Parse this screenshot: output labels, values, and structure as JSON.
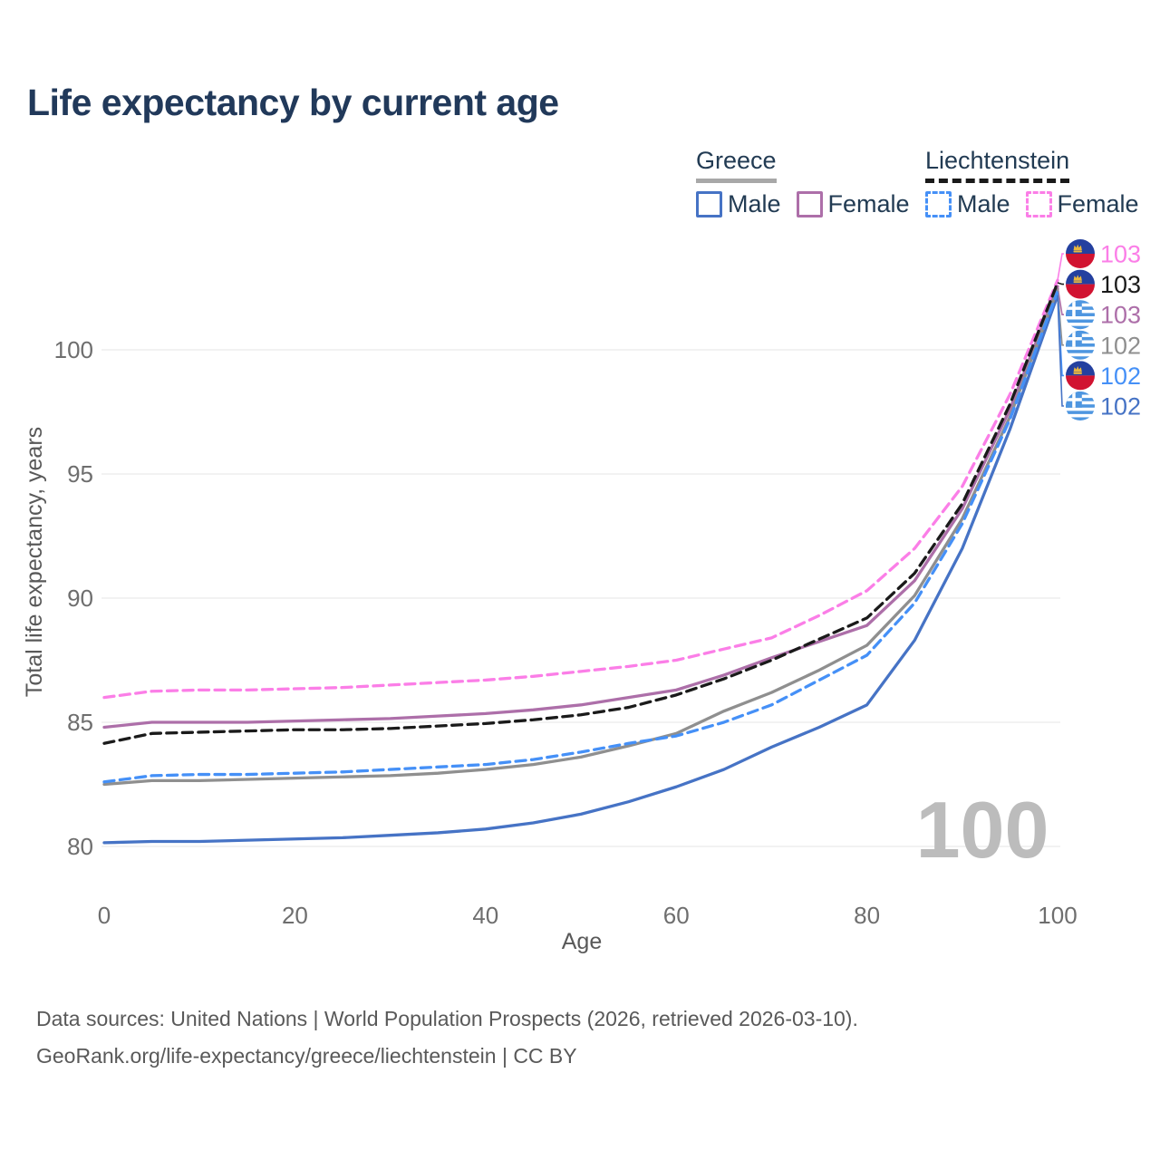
{
  "title": "Life expectancy by current age",
  "watermark": "100",
  "legend": {
    "groups": [
      {
        "label": "Greece",
        "line_style": "solid",
        "underline_color": "#a8a8a8",
        "items": [
          {
            "label": "Male",
            "color": "#4673c5",
            "dashed": false
          },
          {
            "label": "Female",
            "color": "#ad6fa9",
            "dashed": false
          }
        ]
      },
      {
        "label": "Liechtenstein",
        "line_style": "dashed",
        "underline_color": "#1a1a1a",
        "items": [
          {
            "label": "Male",
            "color": "#4590f7",
            "dashed": true
          },
          {
            "label": "Female",
            "color": "#fb7ee7",
            "dashed": true
          }
        ]
      }
    ]
  },
  "chart_data": {
    "type": "line",
    "title": "Life expectancy by current age",
    "xlabel": "Age",
    "ylabel": "Total life expectancy, years",
    "xticks": [
      0,
      20,
      40,
      60,
      80,
      100
    ],
    "yticks": [
      80,
      85,
      90,
      95,
      100
    ],
    "xlim": [
      0,
      100
    ],
    "ylim": [
      78.5,
      103.5
    ],
    "grid": true,
    "legend_position": "top-right",
    "ages": [
      0,
      5,
      10,
      15,
      20,
      25,
      30,
      35,
      40,
      45,
      50,
      55,
      60,
      65,
      70,
      75,
      80,
      85,
      90,
      95,
      100
    ],
    "series": [
      {
        "name": "Greece Male",
        "country": "Greece",
        "sex": "Male",
        "color": "#4673c5",
        "dashed": false,
        "flag": "greece",
        "end_label": "102",
        "values": [
          80.15,
          80.2,
          80.2,
          80.25,
          80.3,
          80.35,
          80.45,
          80.55,
          80.7,
          80.95,
          81.3,
          81.8,
          82.4,
          83.1,
          84.0,
          84.8,
          85.7,
          88.3,
          92.0,
          96.8,
          102.2
        ]
      },
      {
        "name": "Greece Female",
        "country": "Greece",
        "sex": "Female",
        "color": "#ad6fa9",
        "dashed": false,
        "flag": "greece",
        "end_label": "103",
        "values": [
          84.8,
          85.0,
          85.0,
          85.0,
          85.05,
          85.1,
          85.15,
          85.25,
          85.35,
          85.5,
          85.7,
          86.0,
          86.3,
          86.9,
          87.6,
          88.25,
          88.9,
          90.7,
          93.6,
          97.6,
          102.55
        ]
      },
      {
        "name": "Greece Both sexes",
        "country": "Greece",
        "sex": "Both",
        "color": "#8f8f8f",
        "dashed": false,
        "flag": "greece",
        "end_label": "102",
        "values": [
          82.5,
          82.65,
          82.65,
          82.7,
          82.75,
          82.8,
          82.85,
          82.95,
          83.1,
          83.3,
          83.6,
          84.05,
          84.55,
          85.45,
          86.2,
          87.1,
          88.1,
          90.1,
          93.2,
          97.3,
          102.45
        ]
      },
      {
        "name": "Liechtenstein Male",
        "country": "Liechtenstein",
        "sex": "Male",
        "color": "#4590f7",
        "dashed": true,
        "flag": "liechtenstein",
        "end_label": "102",
        "values": [
          82.6,
          82.85,
          82.9,
          82.9,
          82.95,
          83.0,
          83.1,
          83.2,
          83.3,
          83.5,
          83.8,
          84.15,
          84.45,
          85.0,
          85.7,
          86.7,
          87.7,
          89.8,
          93.0,
          97.2,
          102.35
        ]
      },
      {
        "name": "Liechtenstein Female",
        "country": "Liechtenstein",
        "sex": "Female",
        "color": "#fb7ee7",
        "dashed": true,
        "flag": "liechtenstein",
        "end_label": "103",
        "values": [
          86.0,
          86.25,
          86.3,
          86.3,
          86.35,
          86.4,
          86.5,
          86.6,
          86.7,
          86.85,
          87.05,
          87.25,
          87.5,
          87.95,
          88.4,
          89.3,
          90.3,
          92.0,
          94.5,
          98.2,
          102.8
        ]
      },
      {
        "name": "Liechtenstein Both sexes",
        "country": "Liechtenstein",
        "sex": "Both",
        "color": "#1a1a1a",
        "dashed": true,
        "flag": "liechtenstein",
        "end_label": "103",
        "values": [
          84.15,
          84.55,
          84.6,
          84.65,
          84.7,
          84.7,
          84.75,
          84.85,
          84.95,
          85.1,
          85.3,
          85.6,
          86.1,
          86.75,
          87.5,
          88.35,
          89.2,
          91.0,
          93.8,
          97.8,
          102.7
        ]
      }
    ],
    "flag_colors": {
      "greece_blue": "#4e96e0",
      "liechtenstein_blue": "#24409f",
      "liechtenstein_red": "#d11331",
      "crown_gold": "#eab73e"
    }
  },
  "footer": {
    "line1": "Data sources: United Nations | World Population Prospects (2026, retrieved 2026-03-10).",
    "line2": "GeoRank.org/life-expectancy/greece/liechtenstein | CC BY"
  },
  "theme": {
    "title_color": "#21395a",
    "legend_text_color": "#223b53",
    "tick_color": "#6e6e6e",
    "grid_color": "#ededed",
    "watermark_color": "#bcbcbc",
    "footer_color": "#595959",
    "background": "#ffffff"
  }
}
